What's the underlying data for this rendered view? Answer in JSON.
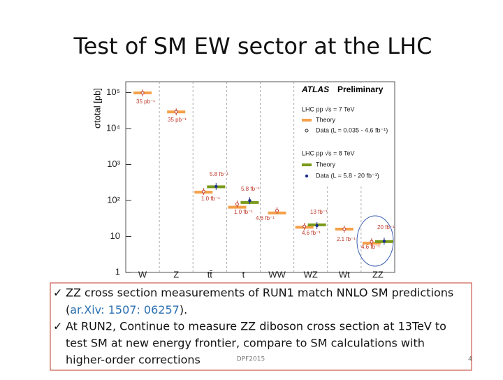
{
  "title": "Test of SM EW sector at the LHC",
  "chart_data": {
    "type": "summary",
    "experiment": "ATLAS",
    "status": "Preliminary",
    "y_label": "σtotal [pb]",
    "categories": [
      "W",
      "Z",
      "tt̄",
      "t",
      "WW",
      "WZ",
      "Wt",
      "ZZ"
    ],
    "log_y": true,
    "ylim": [
      1,
      200000
    ],
    "yticks": [
      1,
      10,
      {
        "value": 100,
        "label": "10²"
      },
      {
        "value": 1000,
        "label": "10³"
      },
      {
        "value": 10000,
        "label": "10⁴"
      },
      {
        "value": 100000,
        "label": "10⁵"
      }
    ],
    "legend_groups": [
      "LHC pp √s = 7 TeV",
      "LHC pp √s = 8 TeV"
    ],
    "series": [
      {
        "name": "Theory",
        "color": "#f5a04a",
        "marker": "band",
        "values": [
          98000,
          29000,
          170,
          65,
          45,
          18,
          16,
          6.5
        ]
      },
      {
        "name": "Data (L = 0.035 - 4.6 fb⁻¹)",
        "color": "#c0392b",
        "marker": "open-circle",
        "values": [
          98000,
          29000,
          177,
          79,
          52,
          19,
          16,
          7.1
        ]
      },
      {
        "name": "Theory",
        "color": "#7a9a1a",
        "marker": "band",
        "values": [
          null,
          null,
          240,
          88,
          null,
          21,
          null,
          7.2
        ]
      },
      {
        "name": "Data (L = 5.8 - 20 fb⁻¹)",
        "color": "#1f2f8a",
        "marker": "dot",
        "values": [
          null,
          null,
          245,
          99,
          null,
          20,
          null,
          7.4
        ]
      }
    ],
    "annotations": [
      "35 pb⁻¹",
      "35 pb⁻¹",
      "1.0 fb⁻¹",
      "5.8 fb⁻¹",
      "5.8 fb⁻¹",
      "1.0 fb⁻¹",
      "4.6 fb⁻¹",
      "13 fb⁻¹",
      "4.6 fb⁻¹",
      "2.1 fb⁻¹",
      "20 fb⁻¹",
      "4.6 fb⁻¹"
    ]
  },
  "bullets": [
    {
      "line1": "ZZ cross section measurements of RUN1 match NNLO SM predictions",
      "line2": [
        "(",
        "ar.Xiv: 1507: 06257",
        ")."
      ]
    },
    {
      "line1": "At RUN2, Continue to measure ZZ diboson cross section at 13TeV to",
      "line2": [
        "test SM at new energy frontier, compare to SM calculations with"
      ],
      "line3": "higher-order corrections"
    }
  ],
  "footer": "DPF2015",
  "page_number": "4"
}
